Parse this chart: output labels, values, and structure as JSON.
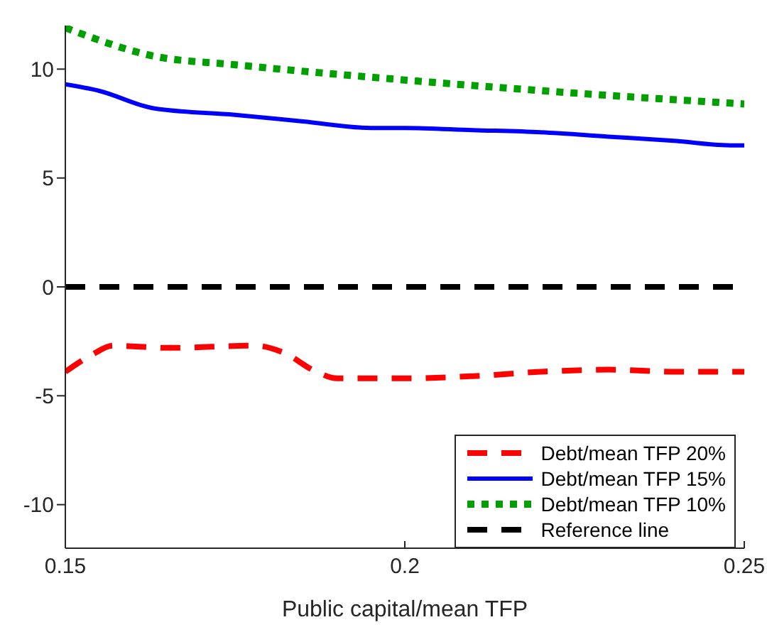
{
  "chart_data": {
    "type": "line",
    "xlabel": "Public capital/mean TFP",
    "xlim": [
      0.15,
      0.25
    ],
    "xticks": [
      0.15,
      0.2,
      0.25
    ],
    "ylim": [
      -12,
      12
    ],
    "yticks": [
      -10,
      -5,
      0,
      5,
      10
    ],
    "grid": false,
    "legend": "bottom right",
    "marker": "none",
    "series": [
      {
        "name": "Debt/mean TFP 20%",
        "color": "#ff0000",
        "line_style": "dashed",
        "x": [
          0.15,
          0.154,
          0.157,
          0.165,
          0.178,
          0.182,
          0.187,
          0.19,
          0.2,
          0.21,
          0.22,
          0.23,
          0.24,
          0.25
        ],
        "values": [
          -3.9,
          -3.1,
          -2.7,
          -2.8,
          -2.7,
          -3.0,
          -3.9,
          -4.2,
          -4.2,
          -4.1,
          -3.9,
          -3.8,
          -3.9,
          -3.9
        ]
      },
      {
        "name": "Debt/mean TFP 15%",
        "color": "#0000ff",
        "line_style": "solid",
        "x": [
          0.15,
          0.155,
          0.163,
          0.175,
          0.185,
          0.195,
          0.2,
          0.21,
          0.22,
          0.23,
          0.24,
          0.248,
          0.25
        ],
        "values": [
          9.3,
          9.0,
          8.2,
          7.9,
          7.6,
          7.3,
          7.3,
          7.2,
          7.1,
          6.9,
          6.7,
          6.5,
          6.5
        ]
      },
      {
        "name": "Debt/mean TFP 10%",
        "color": "#00a000",
        "line_style": "dotted",
        "x": [
          0.15,
          0.163,
          0.175,
          0.2,
          0.225,
          0.25
        ],
        "values": [
          11.9,
          10.6,
          10.2,
          9.5,
          8.9,
          8.4
        ]
      },
      {
        "name": "Reference line",
        "color": "#000000",
        "line_style": "dashed",
        "x": [
          0.15,
          0.25
        ],
        "values": [
          0,
          0
        ]
      }
    ]
  }
}
